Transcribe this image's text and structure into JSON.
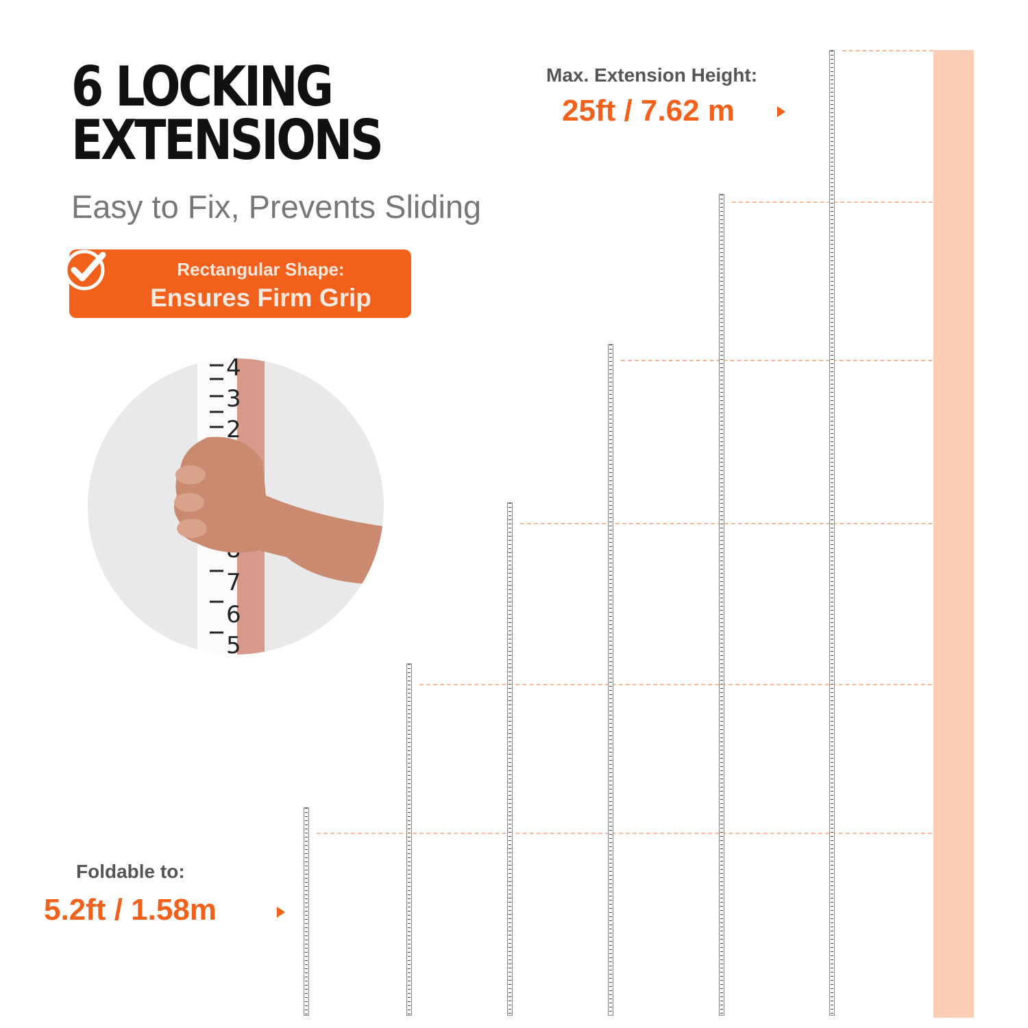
{
  "headline": {
    "line1": "6 LOCKING",
    "line2": "EXTENSIONS"
  },
  "subtitle": "Easy to Fix, Prevents Sliding",
  "badge": {
    "icon": "check-circle-icon",
    "line1": "Rectangular Shape:",
    "line2": "Ensures Firm Grip"
  },
  "max_extension": {
    "label": "Max. Extension Height:",
    "value": "25ft / 7.62 m"
  },
  "foldable": {
    "label": "Foldable to:",
    "value": "5.2ft / 1.58m"
  },
  "sections_extended": [
    1,
    2,
    3,
    4,
    5,
    6
  ],
  "colors": {
    "accent": "#f2611c",
    "bands": [
      "#fbcdb7",
      "#fab896",
      "#f9a57c",
      "#f8915d",
      "#f77c40",
      "#f55e17"
    ]
  }
}
